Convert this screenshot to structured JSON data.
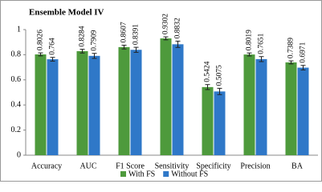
{
  "chart_data": {
    "type": "bar",
    "title": "Ensemble Model IV",
    "categories": [
      "Accuracy",
      "AUC",
      "F1 Score",
      "Sensitivity",
      "Specificity",
      "Precision",
      "BA"
    ],
    "series": [
      {
        "name": "With FS",
        "color": "#4e9a3c",
        "values": [
          0.8026,
          0.8284,
          0.8607,
          0.9302,
          0.5424,
          0.8019,
          0.7389
        ],
        "errors": [
          0.012,
          0.015,
          0.015,
          0.012,
          0.02,
          0.012,
          0.012
        ]
      },
      {
        "name": "Without FS",
        "color": "#2f78c8",
        "values": [
          0.764,
          0.7909,
          0.8391,
          0.8832,
          0.5075,
          0.7651,
          0.6971
        ],
        "errors": [
          0.015,
          0.02,
          0.02,
          0.025,
          0.025,
          0.02,
          0.018
        ]
      }
    ],
    "ylim": [
      0,
      1
    ],
    "yticks": [
      0,
      0.2,
      0.4,
      0.6,
      0.8,
      1
    ],
    "grid": false
  }
}
